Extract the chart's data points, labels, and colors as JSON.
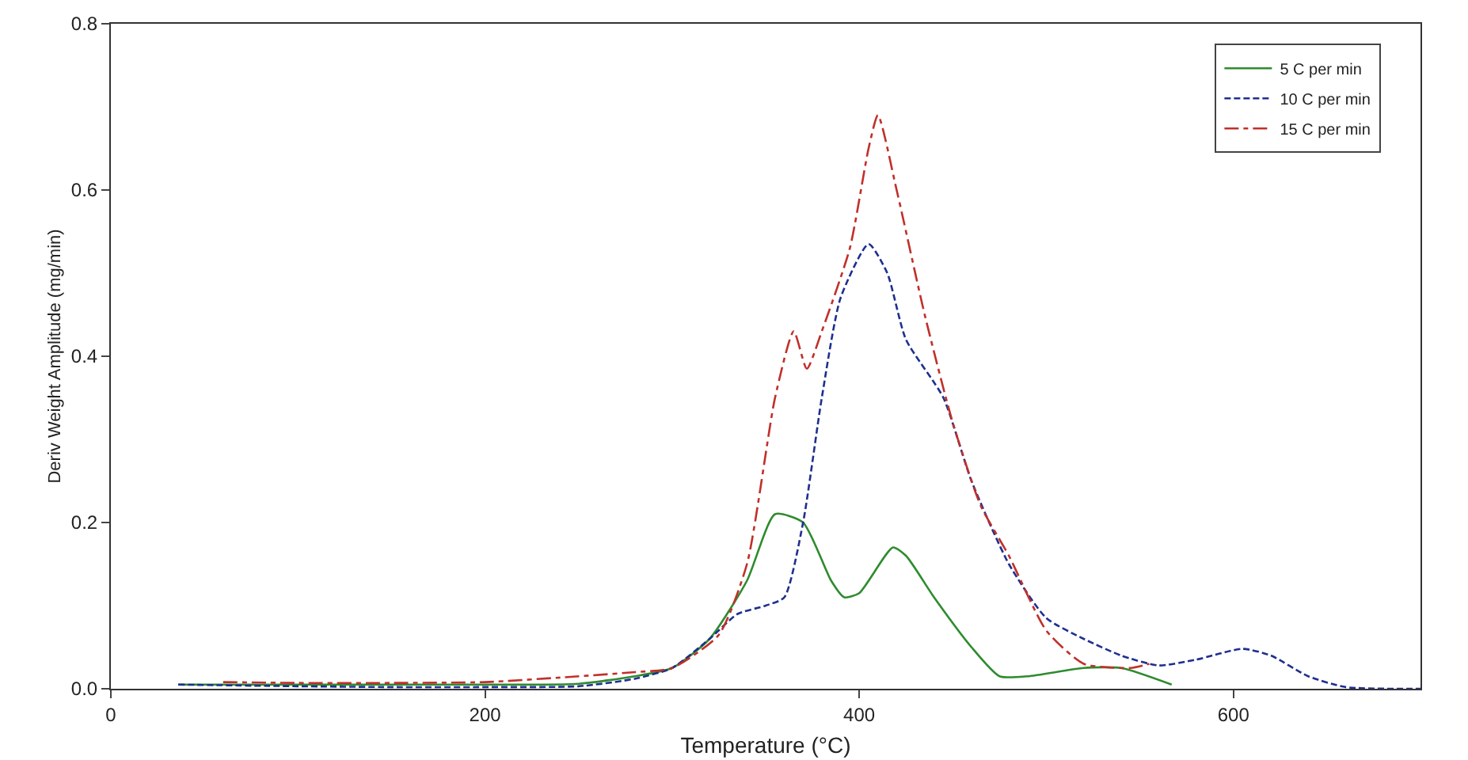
{
  "chart_data": {
    "type": "line",
    "xlabel": "Temperature (°C)",
    "ylabel": "Deriv Weight Amplitude (mg/min)",
    "xlim": [
      0,
      700
    ],
    "xticks": [
      0,
      200,
      400,
      600
    ],
    "ylim": [
      0,
      0.8
    ],
    "yticks": [
      {
        "value": 0,
        "label": "0.0"
      },
      0.2,
      0.4,
      0.6,
      0.8
    ],
    "grid": false,
    "legend": "top right",
    "marker": "none",
    "series": [
      {
        "name": "5 C per min",
        "color": "#2e8b2e",
        "line_style": "solid",
        "x": [
          36,
          100,
          150,
          200,
          250,
          280,
          300,
          320,
          340,
          355,
          370,
          385,
          392,
          400,
          418,
          425,
          440,
          460,
          475,
          490,
          520,
          540,
          567
        ],
        "values": [
          0.005,
          0.005,
          0.005,
          0.005,
          0.006,
          0.015,
          0.025,
          0.06,
          0.13,
          0.21,
          0.2,
          0.13,
          0.11,
          0.115,
          0.17,
          0.16,
          0.11,
          0.05,
          0.015,
          0.015,
          0.025,
          0.025,
          0.005
        ]
      },
      {
        "name": "10 C per min",
        "color": "#1f2f8f",
        "line_style": "dashed",
        "x": [
          36,
          100,
          150,
          200,
          250,
          280,
          300,
          320,
          335,
          350,
          360,
          370,
          380,
          390,
          405,
          415,
          425,
          445,
          460,
          480,
          500,
          520,
          540,
          560,
          580,
          605,
          620,
          640,
          660,
          700
        ],
        "values": [
          0.005,
          0.003,
          0.002,
          0.002,
          0.003,
          0.012,
          0.025,
          0.06,
          0.09,
          0.1,
          0.11,
          0.2,
          0.35,
          0.47,
          0.535,
          0.5,
          0.42,
          0.35,
          0.25,
          0.15,
          0.085,
          0.06,
          0.04,
          0.028,
          0.035,
          0.048,
          0.04,
          0.015,
          0.002,
          0
        ]
      },
      {
        "name": "15 C per min",
        "color": "#c0302a",
        "line_style": "dashdot",
        "x": [
          60,
          100,
          150,
          200,
          250,
          280,
          300,
          325,
          340,
          355,
          365,
          372,
          380,
          395,
          405,
          410,
          420,
          435,
          450,
          465,
          480,
          500,
          520,
          545,
          555
        ],
        "values": [
          0.008,
          0.007,
          0.007,
          0.008,
          0.015,
          0.02,
          0.025,
          0.065,
          0.15,
          0.35,
          0.43,
          0.385,
          0.43,
          0.53,
          0.65,
          0.69,
          0.6,
          0.45,
          0.32,
          0.22,
          0.16,
          0.07,
          0.03,
          0.025,
          0.03
        ]
      }
    ]
  }
}
